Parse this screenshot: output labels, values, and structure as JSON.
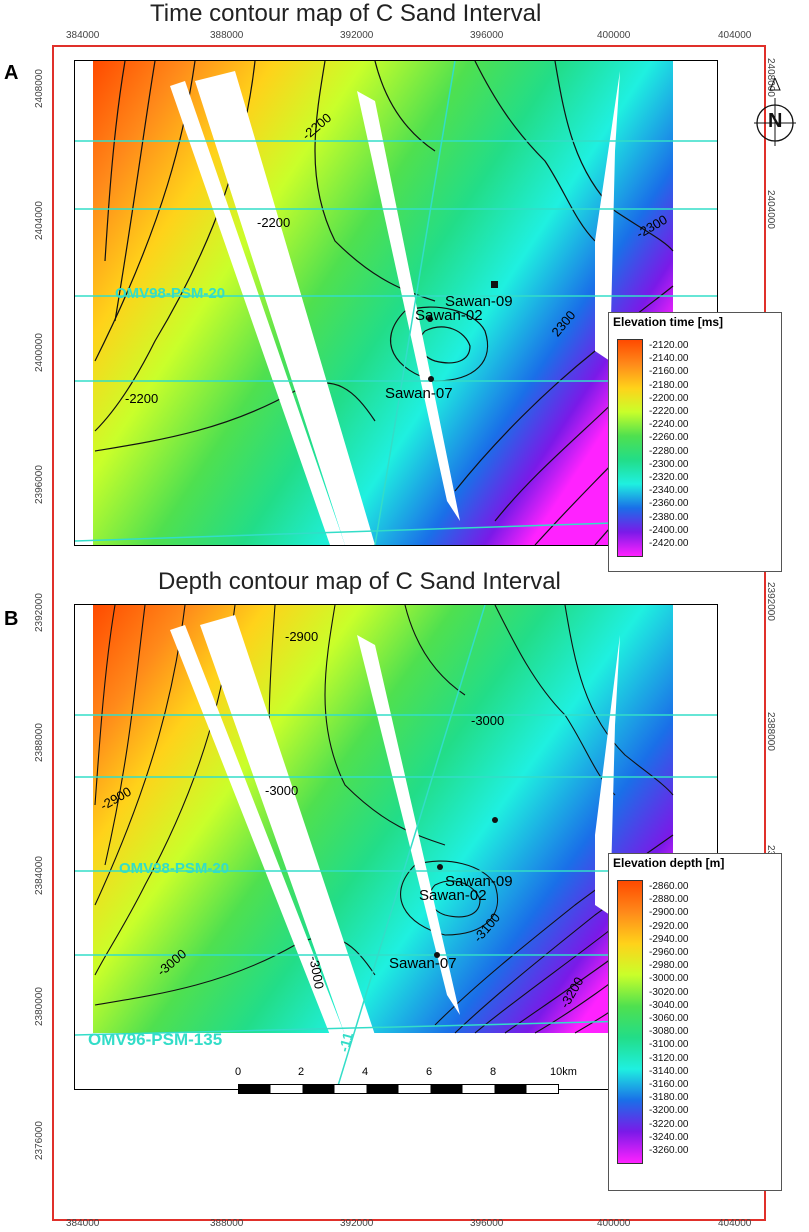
{
  "panels": [
    {
      "letter": "A",
      "title": "Time contour map of C Sand Interval",
      "legend_title": "Elevation time [ms]",
      "legend_values": [
        "-2120.00",
        "-2140.00",
        "-2160.00",
        "-2180.00",
        "-2200.00",
        "-2220.00",
        "-2240.00",
        "-2260.00",
        "-2280.00",
        "-2300.00",
        "-2320.00",
        "-2340.00",
        "-2360.00",
        "-2380.00",
        "-2400.00",
        "-2420.00"
      ],
      "contour_labels": [
        "-2200",
        "-2200",
        "-2200",
        "-2300",
        "2300",
        "-2"
      ],
      "wells": [
        "Sawan-09",
        "Sawan-02",
        "Sawan-07"
      ],
      "seismic_line": "OMV98-PSM-20"
    },
    {
      "letter": "B",
      "title": "Depth contour map of C Sand Interval",
      "legend_title": "Elevation depth [m]",
      "legend_values": [
        "-2860.00",
        "-2880.00",
        "-2900.00",
        "-2920.00",
        "-2940.00",
        "-2960.00",
        "-2980.00",
        "-3000.00",
        "-3020.00",
        "-3040.00",
        "-3060.00",
        "-3080.00",
        "-3100.00",
        "-3120.00",
        "-3140.00",
        "-3160.00",
        "-3180.00",
        "-3200.00",
        "-3220.00",
        "-3240.00",
        "-3260.00"
      ],
      "contour_labels": [
        "-2900",
        "-2900",
        "-3000",
        "-3000",
        "-3000",
        "-3000",
        "-3100",
        "-3200"
      ],
      "wells": [
        "Sawan-09",
        "Sawan-02",
        "Sawan-07"
      ],
      "seismic_line": "OMV98-PSM-20",
      "seismic_line_2": "OMV96-PSM-135",
      "line_tick": "-11"
    }
  ],
  "x_ticks": [
    "384000",
    "388000",
    "392000",
    "396000",
    "400000",
    "404000"
  ],
  "y_ticks": [
    "2408000",
    "2404000",
    "2400000",
    "2396000",
    "2392000",
    "2388000",
    "2384000",
    "2380000",
    "2376000"
  ],
  "scale_bar": {
    "labels": [
      "0",
      "2",
      "4",
      "6",
      "8",
      "10km"
    ]
  },
  "compass_letter": "N",
  "colors": {
    "frame": "#e0302a",
    "contour": "#111111",
    "seismic": "#33ddc8"
  }
}
